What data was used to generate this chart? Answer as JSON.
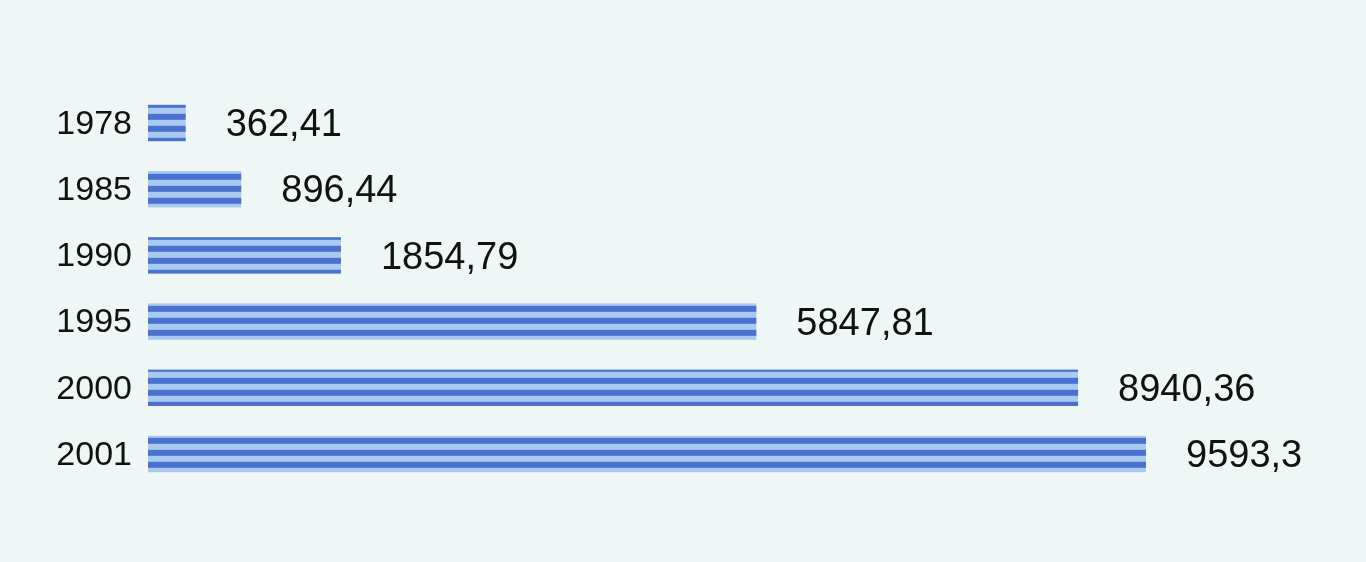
{
  "chart_data": {
    "type": "bar",
    "orientation": "horizontal",
    "relative": false,
    "categories": [
      "1978",
      "1985",
      "1990",
      "1995",
      "2000",
      "2001"
    ],
    "values": [
      362.41,
      896.44,
      1854.79,
      5847.81,
      8940.36,
      9593.3
    ],
    "value_labels": [
      "362,41",
      "896,44",
      "1854,79",
      "5847,81",
      "8940,36",
      "9593,3"
    ],
    "color": "#4a70d0"
  }
}
